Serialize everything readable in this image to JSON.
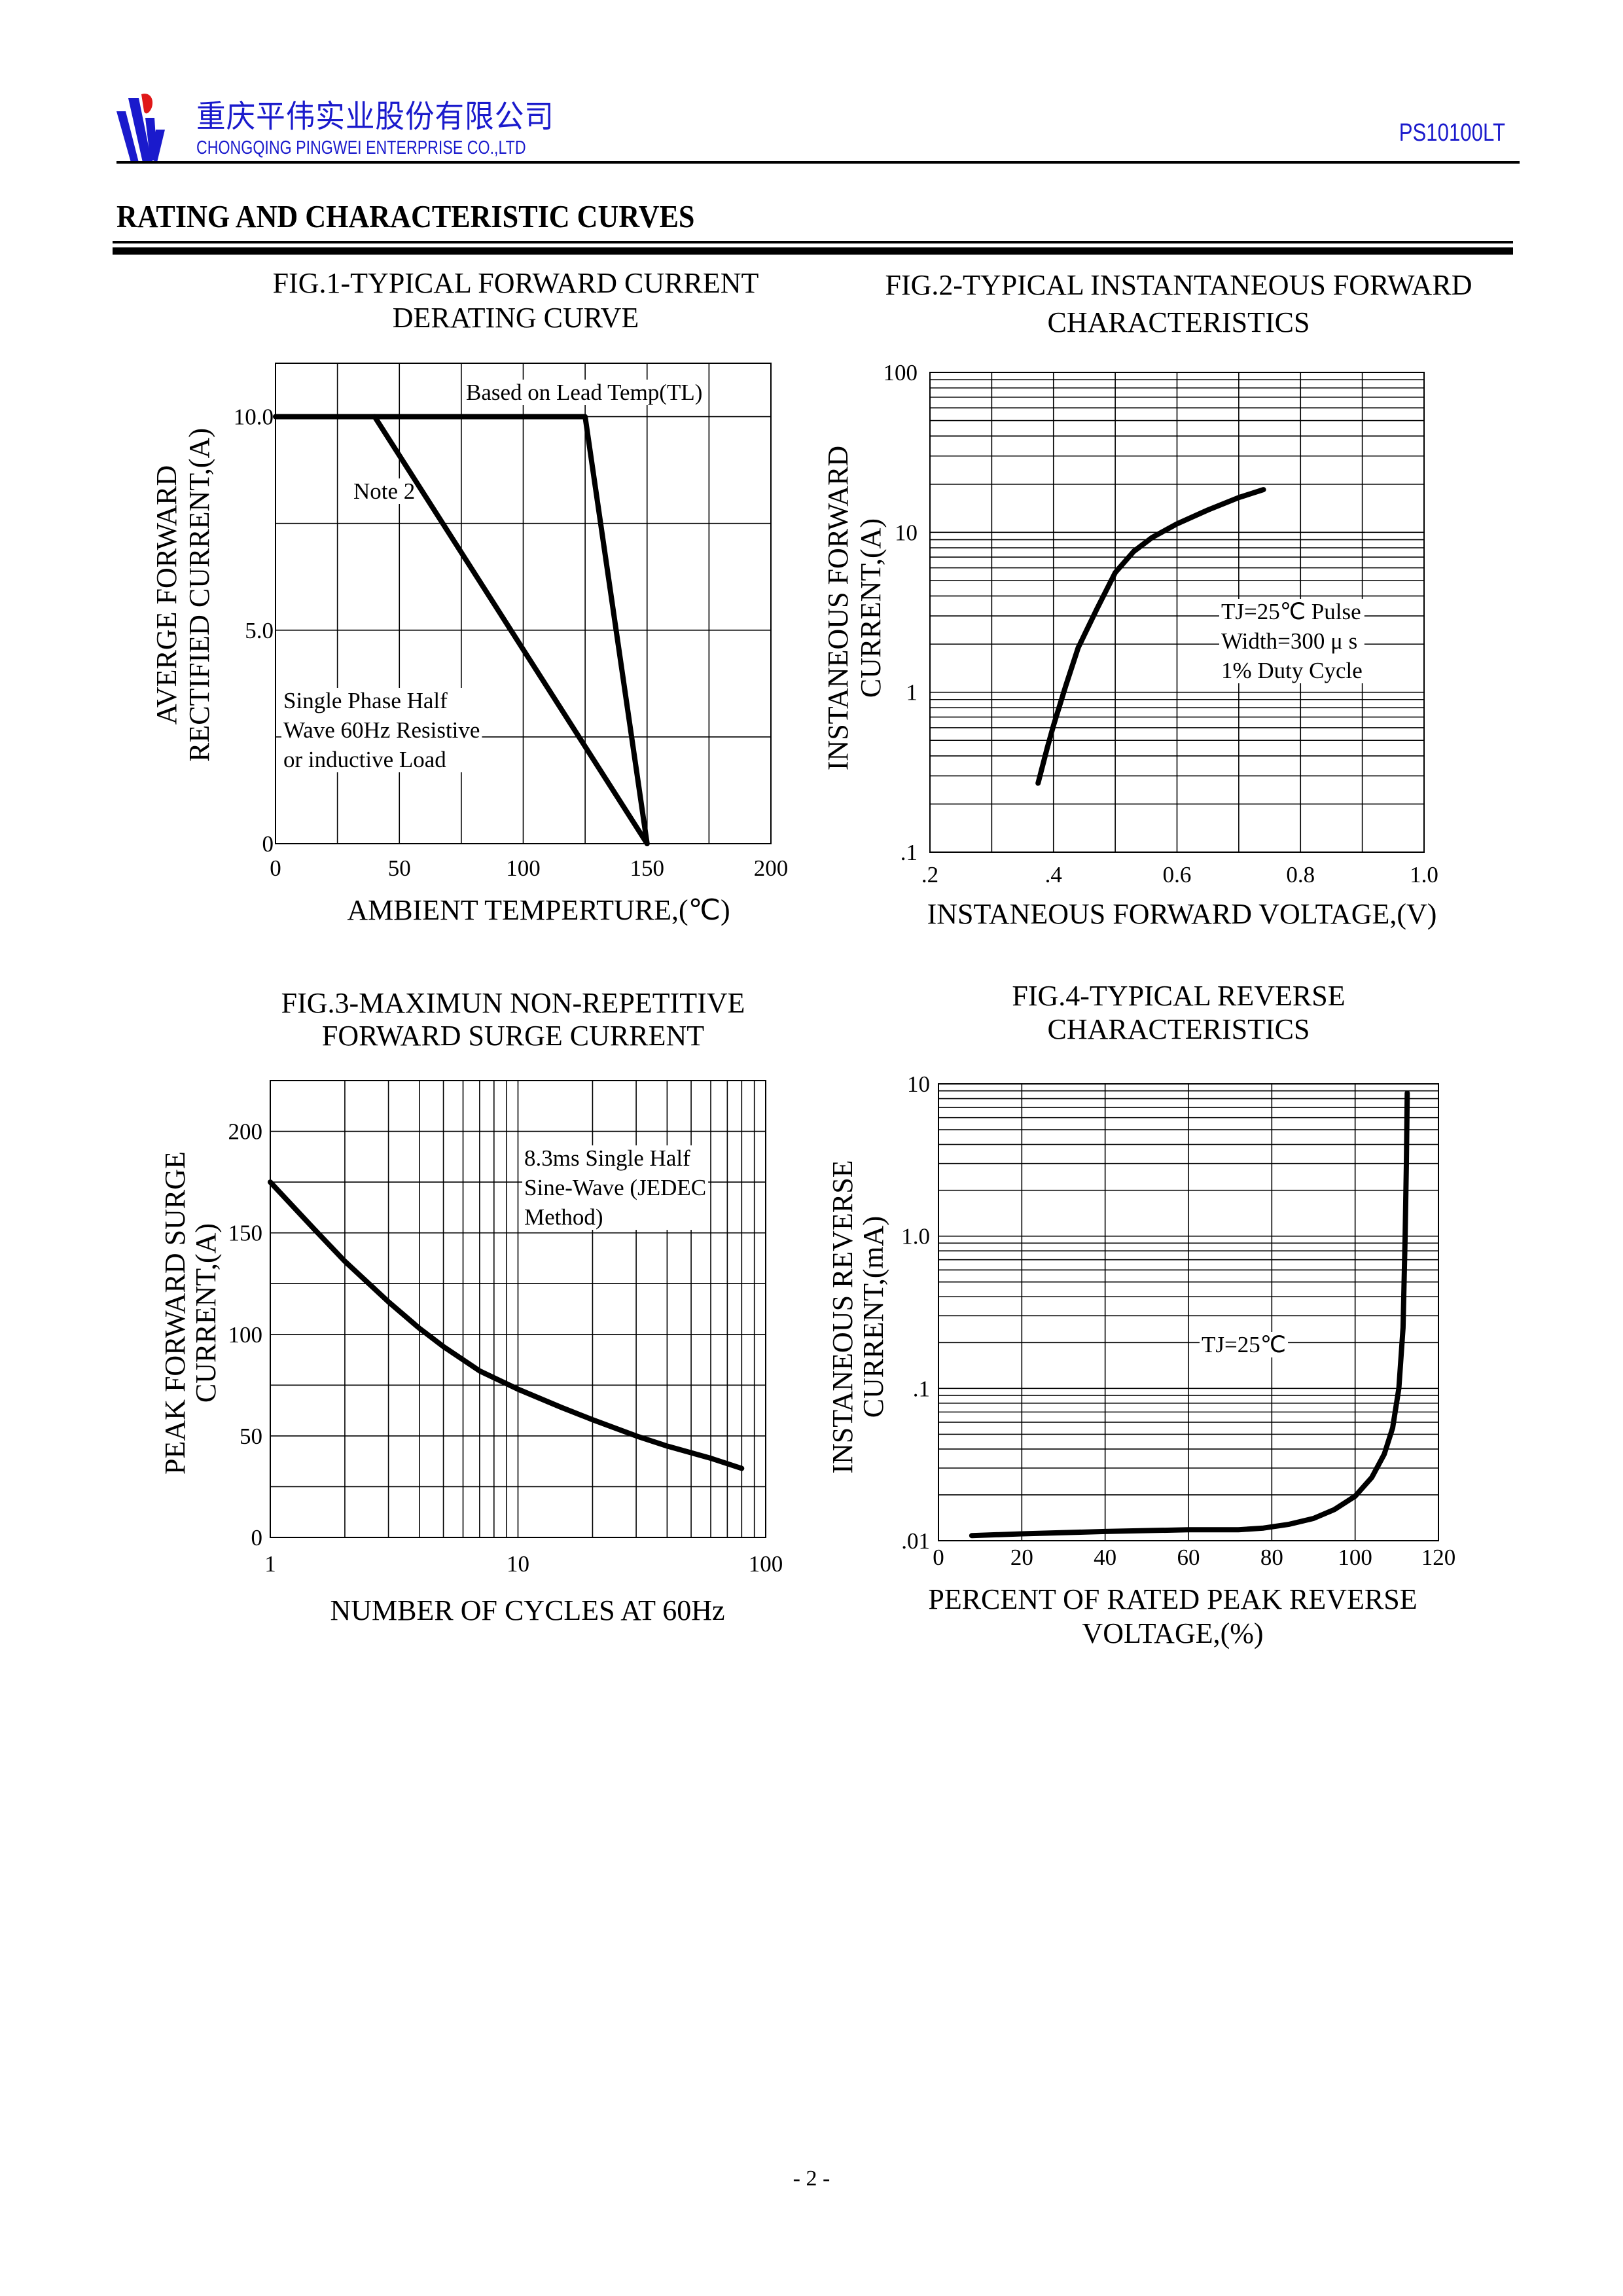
{
  "header": {
    "company_cn": "重庆平伟实业股份有限公司",
    "company_en": "CHONGQING PINGWEI ENTERPRISE CO.,LTD",
    "part_number": "PS10100LT",
    "brand_colors": {
      "blue": "#1a1acc",
      "red": "#e01818"
    }
  },
  "page_title": "RATING AND CHARACTERISTIC CURVES",
  "page_number": "- 2 -",
  "chart_data": [
    {
      "type": "line",
      "title": [
        "FIG.1-TYPICAL FORWARD CURRENT",
        "DERATING CURVE"
      ],
      "xlabel": [
        "AMBIENT TEMPERTURE,(℃)"
      ],
      "ylabel": [
        "AVERGE FORWARD",
        "RECTIFIED CURRENT,(A)"
      ],
      "xscale": "linear",
      "yscale": "linear",
      "xlim": [
        0,
        200
      ],
      "ylim": [
        0,
        11.25
      ],
      "grid": true,
      "xgrid_step": 25,
      "ygrid_step": 2.5,
      "xticks": [
        {
          "v": 0,
          "label": "0"
        },
        {
          "v": 50,
          "label": "50"
        },
        {
          "v": 100,
          "label": "100"
        },
        {
          "v": 150,
          "label": "150"
        },
        {
          "v": 200,
          "label": "200"
        }
      ],
      "yticks": [
        {
          "v": 0,
          "label": "0"
        },
        {
          "v": 5,
          "label": "5.0"
        },
        {
          "v": 10,
          "label": "10.0"
        }
      ],
      "series": [
        {
          "name": "Based on Lead Temp(TL)",
          "points": [
            [
              0,
              10
            ],
            [
              125,
              10
            ],
            [
              150,
              0
            ]
          ]
        },
        {
          "name": "Note 2",
          "points": [
            [
              40,
              10
            ],
            [
              150,
              0
            ]
          ]
        }
      ],
      "annotations": [
        {
          "lines": [
            "Based on Lead Temp(TL)"
          ]
        },
        {
          "lines": [
            "Note 2"
          ]
        },
        {
          "lines": [
            "Single Phase Half",
            "Wave 60Hz Resistive",
            "or inductive Load"
          ]
        }
      ]
    },
    {
      "type": "line",
      "title": [
        "FIG.2-TYPICAL INSTANTANEOUS FORWARD",
        "CHARACTERISTICS"
      ],
      "xlabel": [
        "INSTANEOUS FORWARD VOLTAGE,(V)"
      ],
      "ylabel": [
        "INSTANEOUS FORWARD",
        "CURRENT,(A)"
      ],
      "xscale": "linear",
      "yscale": "log",
      "xlim": [
        0.2,
        1.0
      ],
      "ylim": [
        0.1,
        100
      ],
      "grid": true,
      "xgrid_step": 0.1,
      "xticks": [
        {
          "v": 0.2,
          "label": ".2"
        },
        {
          "v": 0.4,
          "label": ".4"
        },
        {
          "v": 0.6,
          "label": "0.6"
        },
        {
          "v": 0.8,
          "label": "0.8"
        },
        {
          "v": 1.0,
          "label": "1.0"
        }
      ],
      "yticks": [
        {
          "v": 0.1,
          "label": ".1"
        },
        {
          "v": 1,
          "label": "1"
        },
        {
          "v": 10,
          "label": "10"
        },
        {
          "v": 100,
          "label": "100"
        }
      ],
      "series": [
        {
          "name": "TJ=25℃",
          "points": [
            [
              0.375,
              0.27
            ],
            [
              0.39,
              0.45
            ],
            [
              0.4,
              0.62
            ],
            [
              0.42,
              1.1
            ],
            [
              0.44,
              1.9
            ],
            [
              0.47,
              3.3
            ],
            [
              0.5,
              5.6
            ],
            [
              0.53,
              7.6
            ],
            [
              0.56,
              9.3
            ],
            [
              0.6,
              11.3
            ],
            [
              0.65,
              13.8
            ],
            [
              0.7,
              16.5
            ],
            [
              0.74,
              18.5
            ]
          ]
        }
      ],
      "annotations": [
        {
          "lines": [
            "TJ=25℃ Pulse",
            "Width=300 μ s",
            "1% Duty Cycle"
          ]
        }
      ]
    },
    {
      "type": "line",
      "title": [
        "FIG.3-MAXIMUN NON-REPETITIVE",
        "FORWARD SURGE CURRENT"
      ],
      "xlabel": [
        "NUMBER OF CYCLES AT 60Hz"
      ],
      "ylabel": [
        "PEAK FORWARD SURGE",
        "CURRENT,(A)"
      ],
      "xscale": "log",
      "yscale": "linear",
      "xlim": [
        1,
        100
      ],
      "ylim": [
        0,
        225
      ],
      "grid": true,
      "ygrid_step": 25,
      "xticks": [
        {
          "v": 1,
          "label": "1"
        },
        {
          "v": 10,
          "label": "10"
        },
        {
          "v": 100,
          "label": "100"
        }
      ],
      "yticks": [
        {
          "v": 0,
          "label": "0"
        },
        {
          "v": 50,
          "label": "50"
        },
        {
          "v": 100,
          "label": "100"
        },
        {
          "v": 150,
          "label": "150"
        },
        {
          "v": 200,
          "label": "200"
        }
      ],
      "series": [
        {
          "name": "Surge",
          "points": [
            [
              1,
              175
            ],
            [
              1.5,
              152
            ],
            [
              2,
              136
            ],
            [
              3,
              116
            ],
            [
              4,
              103
            ],
            [
              5,
              94
            ],
            [
              7,
              82
            ],
            [
              10,
              73
            ],
            [
              15,
              64
            ],
            [
              20,
              58
            ],
            [
              30,
              50
            ],
            [
              40,
              45
            ],
            [
              60,
              39
            ],
            [
              80,
              34
            ]
          ]
        }
      ],
      "annotations": [
        {
          "lines": [
            "8.3ms Single Half",
            "Sine-Wave (JEDEC",
            "Method)"
          ]
        }
      ]
    },
    {
      "type": "line",
      "title": [
        "FIG.4-TYPICAL REVERSE",
        "CHARACTERISTICS"
      ],
      "xlabel": [
        "PERCENT OF RATED PEAK REVERSE",
        "VOLTAGE,(%)"
      ],
      "ylabel": [
        "INSTANEOUS REVERSE",
        "CURRENT,(mA)"
      ],
      "xscale": "linear",
      "yscale": "log",
      "xlim": [
        0,
        120
      ],
      "ylim": [
        0.01,
        10
      ],
      "grid": true,
      "xgrid_step": 20,
      "xticks": [
        {
          "v": 0,
          "label": "0"
        },
        {
          "v": 20,
          "label": "20"
        },
        {
          "v": 40,
          "label": "40"
        },
        {
          "v": 60,
          "label": "60"
        },
        {
          "v": 80,
          "label": "80"
        },
        {
          "v": 100,
          "label": "100"
        },
        {
          "v": 120,
          "label": "120"
        }
      ],
      "yticks": [
        {
          "v": 0.01,
          "label": ".01"
        },
        {
          "v": 0.1,
          "label": ".1"
        },
        {
          "v": 1,
          "label": "1.0"
        },
        {
          "v": 10,
          "label": "10"
        }
      ],
      "series": [
        {
          "name": "TJ=25℃",
          "points": [
            [
              8,
              0.0108
            ],
            [
              20,
              0.0111
            ],
            [
              40,
              0.0115
            ],
            [
              60,
              0.0118
            ],
            [
              72,
              0.0118
            ],
            [
              78,
              0.0121
            ],
            [
              84,
              0.0128
            ],
            [
              90,
              0.014
            ],
            [
              95,
              0.016
            ],
            [
              100,
              0.0196
            ],
            [
              104,
              0.026
            ],
            [
              107,
              0.037
            ],
            [
              109,
              0.055
            ],
            [
              110.5,
              0.1
            ],
            [
              111.5,
              0.25
            ],
            [
              112,
              1
            ],
            [
              112.3,
              3
            ],
            [
              112.5,
              8.7
            ]
          ]
        }
      ],
      "annotations": [
        {
          "lines": [
            "TJ=25℃"
          ]
        }
      ]
    }
  ]
}
